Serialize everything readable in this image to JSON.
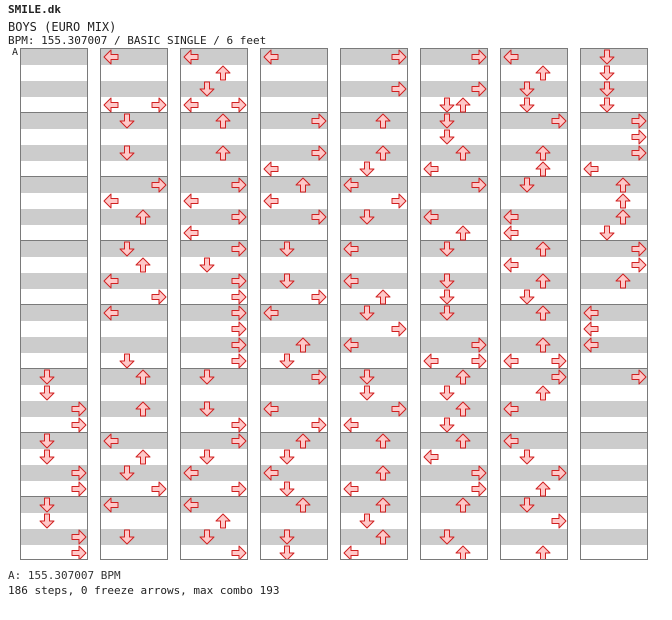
{
  "header": {
    "site": "SMILE.dk",
    "song_title": "BOYS (EURO MIX)",
    "meta": "BPM: 155.307007 / BASIC SINGLE / 6 feet",
    "section_marker": "A"
  },
  "footer": {
    "bpm_line": "A: 155.307007 BPM",
    "stats": "186 steps, 0 freeze arrows, max combo 193"
  },
  "colors": {
    "arrow_fill": "#ffc8c8",
    "arrow_stroke": "#d02020",
    "band": "#cccccc",
    "border": "#7a7a7a"
  },
  "chart_data": {
    "type": "table",
    "lanes": [
      "left",
      "down",
      "up",
      "right"
    ],
    "measures": [
      [],
      [],
      [],
      [],
      [],
      [],
      [],
      [
        [
          1,
          "L"
        ],
        [
          6,
          "R"
        ],
        [
          7,
          "R"
        ]
      ],
      [
        [
          0,
          "L"
        ],
        [
          1,
          "L"
        ],
        [
          2,
          "D"
        ],
        [
          3,
          "L"
        ],
        [
          4,
          "R"
        ],
        [
          5,
          "D"
        ]
      ],
      [
        [
          0,
          "R"
        ],
        [
          1,
          "D"
        ],
        [
          2,
          "U"
        ],
        [
          3,
          "R"
        ],
        [
          4,
          "U"
        ],
        [
          5,
          "R"
        ]
      ],
      [
        [
          0,
          "L"
        ],
        [
          1,
          "L"
        ],
        [
          2,
          "D"
        ],
        [
          3,
          "D"
        ],
        [
          4,
          "R"
        ],
        [
          5,
          "R"
        ]
      ],
      [
        [
          0,
          "D"
        ],
        [
          1,
          "U"
        ],
        [
          2,
          "D"
        ],
        [
          3,
          "D"
        ],
        [
          4,
          "R"
        ],
        [
          5,
          "D"
        ]
      ],
      [
        [
          0,
          "U"
        ],
        [
          1,
          "D"
        ],
        [
          2,
          "U"
        ],
        [
          3,
          "D"
        ],
        [
          4,
          "R"
        ],
        [
          5,
          "U"
        ]
      ],
      [
        [
          0,
          "D"
        ],
        [
          1,
          "U"
        ],
        [
          2,
          "R"
        ],
        [
          3,
          "U"
        ],
        [
          4,
          "U"
        ],
        [
          5,
          "D"
        ]
      ],
      [
        [
          0,
          "D"
        ],
        [
          1,
          "D"
        ],
        [
          2,
          "R"
        ],
        [
          3,
          "D"
        ],
        [
          4,
          "L"
        ],
        [
          5,
          "R"
        ]
      ],
      [
        [
          0,
          "R"
        ],
        [
          1,
          "U"
        ],
        [
          2,
          "U"
        ],
        [
          3,
          "D"
        ],
        [
          4,
          "R"
        ],
        [
          5,
          "R"
        ]
      ],
      [
        [
          0,
          "L"
        ],
        [
          1,
          "R"
        ],
        [
          2,
          "L"
        ],
        [
          3,
          "U"
        ],
        [
          4,
          "L"
        ],
        [
          5,
          "D"
        ]
      ]
    ],
    "columns": [
      {
        "steps": [
          [
            20,
            "D"
          ],
          [
            21,
            "D"
          ],
          [
            22,
            "R"
          ],
          [
            23,
            "R"
          ],
          [
            24,
            "D"
          ],
          [
            25,
            "D"
          ],
          [
            26,
            "R"
          ],
          [
            27,
            "R"
          ],
          [
            28,
            "D"
          ],
          [
            29,
            "D"
          ],
          [
            30,
            "R"
          ],
          [
            31,
            "R"
          ]
        ]
      },
      {
        "steps": [
          [
            0,
            "L"
          ],
          [
            3,
            "L"
          ],
          [
            3,
            "R"
          ],
          [
            4,
            "D"
          ],
          [
            6,
            "D"
          ],
          [
            8,
            "R"
          ],
          [
            9,
            "L"
          ],
          [
            10,
            "U"
          ],
          [
            12,
            "D"
          ],
          [
            13,
            "U"
          ],
          [
            14,
            "L"
          ],
          [
            15,
            "R"
          ],
          [
            16,
            "L"
          ],
          [
            19,
            "D"
          ],
          [
            20,
            "U"
          ],
          [
            22,
            "U"
          ],
          [
            24,
            "L"
          ],
          [
            25,
            "U"
          ],
          [
            26,
            "D"
          ],
          [
            27,
            "R"
          ],
          [
            28,
            "L"
          ],
          [
            30,
            "D"
          ]
        ]
      },
      {
        "steps": [
          [
            0,
            "L"
          ],
          [
            1,
            "U"
          ],
          [
            2,
            "D"
          ],
          [
            3,
            "L"
          ],
          [
            3,
            "R"
          ],
          [
            4,
            "U"
          ],
          [
            6,
            "U"
          ],
          [
            8,
            "R"
          ],
          [
            9,
            "L"
          ],
          [
            10,
            "R"
          ],
          [
            11,
            "L"
          ],
          [
            12,
            "R"
          ],
          [
            13,
            "D"
          ],
          [
            14,
            "R"
          ],
          [
            15,
            "R"
          ],
          [
            16,
            "R"
          ],
          [
            17,
            "R"
          ],
          [
            18,
            "R"
          ],
          [
            19,
            "R"
          ],
          [
            20,
            "D"
          ],
          [
            22,
            "D"
          ],
          [
            23,
            "R"
          ],
          [
            24,
            "R"
          ],
          [
            25,
            "D"
          ],
          [
            26,
            "L"
          ],
          [
            27,
            "R"
          ],
          [
            28,
            "L"
          ],
          [
            29,
            "U"
          ],
          [
            30,
            "D"
          ],
          [
            31,
            "R"
          ]
        ]
      },
      {
        "steps": [
          [
            0,
            "L"
          ],
          [
            4,
            "R"
          ],
          [
            6,
            "R"
          ],
          [
            7,
            "L"
          ],
          [
            8,
            "U"
          ],
          [
            9,
            "L"
          ],
          [
            10,
            "R"
          ],
          [
            12,
            "D"
          ],
          [
            14,
            "D"
          ],
          [
            15,
            "R"
          ],
          [
            16,
            "L"
          ],
          [
            18,
            "U"
          ],
          [
            19,
            "D"
          ],
          [
            20,
            "R"
          ],
          [
            22,
            "L"
          ],
          [
            23,
            "R"
          ],
          [
            24,
            "U"
          ],
          [
            25,
            "D"
          ],
          [
            26,
            "L"
          ],
          [
            27,
            "D"
          ],
          [
            28,
            "U"
          ],
          [
            30,
            "D"
          ],
          [
            31,
            "D"
          ]
        ]
      },
      {
        "steps": [
          [
            0,
            "R"
          ],
          [
            2,
            "R"
          ],
          [
            4,
            "U"
          ],
          [
            6,
            "U"
          ],
          [
            7,
            "D"
          ],
          [
            8,
            "L"
          ],
          [
            9,
            "R"
          ],
          [
            10,
            "D"
          ],
          [
            12,
            "L"
          ],
          [
            14,
            "L"
          ],
          [
            15,
            "U"
          ],
          [
            16,
            "D"
          ],
          [
            17,
            "R"
          ],
          [
            18,
            "L"
          ],
          [
            20,
            "D"
          ],
          [
            21,
            "D"
          ],
          [
            22,
            "R"
          ],
          [
            23,
            "L"
          ],
          [
            24,
            "U"
          ],
          [
            26,
            "U"
          ],
          [
            27,
            "L"
          ],
          [
            28,
            "U"
          ],
          [
            29,
            "D"
          ],
          [
            30,
            "U"
          ],
          [
            31,
            "L"
          ]
        ]
      },
      {
        "steps": [
          [
            0,
            "R"
          ],
          [
            2,
            "R"
          ],
          [
            3,
            "D"
          ],
          [
            3,
            "U"
          ],
          [
            4,
            "D"
          ],
          [
            5,
            "D"
          ],
          [
            6,
            "U"
          ],
          [
            7,
            "L"
          ],
          [
            8,
            "R"
          ],
          [
            10,
            "L"
          ],
          [
            11,
            "U"
          ],
          [
            12,
            "D"
          ],
          [
            14,
            "D"
          ],
          [
            15,
            "D"
          ],
          [
            16,
            "D"
          ],
          [
            18,
            "R"
          ],
          [
            19,
            "L"
          ],
          [
            19,
            "R"
          ],
          [
            20,
            "U"
          ],
          [
            21,
            "D"
          ],
          [
            22,
            "U"
          ],
          [
            23,
            "D"
          ],
          [
            24,
            "U"
          ],
          [
            25,
            "L"
          ],
          [
            26,
            "R"
          ],
          [
            27,
            "R"
          ],
          [
            28,
            "U"
          ],
          [
            30,
            "D"
          ],
          [
            31,
            "U"
          ]
        ]
      },
      {
        "steps": [
          [
            0,
            "L"
          ],
          [
            1,
            "U"
          ],
          [
            2,
            "D"
          ],
          [
            3,
            "D"
          ],
          [
            4,
            "R"
          ],
          [
            6,
            "U"
          ],
          [
            7,
            "U"
          ],
          [
            8,
            "D"
          ],
          [
            10,
            "L"
          ],
          [
            11,
            "L"
          ],
          [
            12,
            "U"
          ],
          [
            13,
            "L"
          ],
          [
            14,
            "U"
          ],
          [
            15,
            "D"
          ],
          [
            16,
            "U"
          ],
          [
            18,
            "U"
          ],
          [
            19,
            "L"
          ],
          [
            19,
            "R"
          ],
          [
            20,
            "R"
          ],
          [
            21,
            "U"
          ],
          [
            22,
            "L"
          ],
          [
            24,
            "L"
          ],
          [
            25,
            "D"
          ],
          [
            26,
            "R"
          ],
          [
            27,
            "U"
          ],
          [
            28,
            "D"
          ],
          [
            29,
            "R"
          ],
          [
            31,
            "U"
          ]
        ]
      },
      {
        "steps": [
          [
            0,
            "D"
          ],
          [
            1,
            "D"
          ],
          [
            2,
            "D"
          ],
          [
            3,
            "D"
          ],
          [
            4,
            "R"
          ],
          [
            5,
            "R"
          ],
          [
            6,
            "R"
          ],
          [
            7,
            "L"
          ],
          [
            8,
            "U"
          ],
          [
            9,
            "U"
          ],
          [
            10,
            "U"
          ],
          [
            11,
            "D"
          ],
          [
            12,
            "R"
          ],
          [
            13,
            "R"
          ],
          [
            14,
            "U"
          ],
          [
            16,
            "L"
          ],
          [
            17,
            "L"
          ],
          [
            18,
            "L"
          ],
          [
            20,
            "R"
          ]
        ]
      }
    ]
  }
}
